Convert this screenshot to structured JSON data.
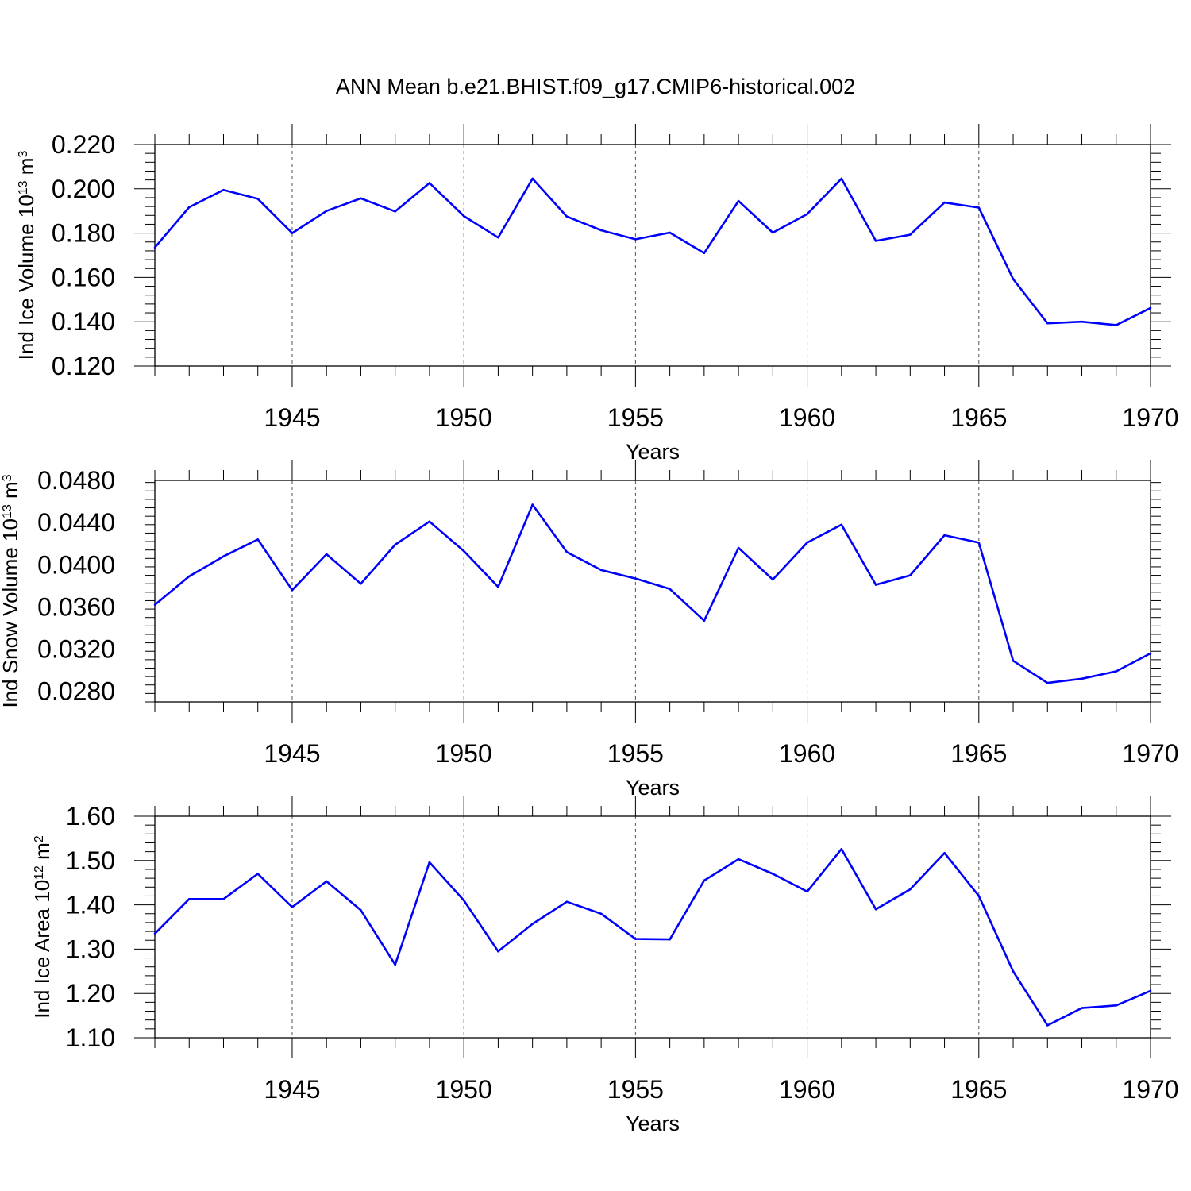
{
  "title": "ANN Mean b.e21.BHIST.f09_g17.CMIP6-historical.002",
  "line_color": "#0000ff",
  "chart_data": [
    {
      "type": "line",
      "ylabel_main": "Ind Ice Volume 10",
      "ylabel_exp": "13",
      "ylabel_unit": " m",
      "ylabel_unit_exp": "3",
      "xlabel": "Years",
      "xlim": [
        1941,
        1970
      ],
      "ylim": [
        0.12,
        0.22
      ],
      "yticks": [
        "0.120",
        "0.140",
        "0.160",
        "0.180",
        "0.200",
        "0.220"
      ],
      "xticks": [
        "1945",
        "1950",
        "1955",
        "1960",
        "1965",
        "1970"
      ],
      "x": [
        1941,
        1942,
        1943,
        1944,
        1945,
        1946,
        1947,
        1948,
        1949,
        1950,
        1951,
        1952,
        1953,
        1954,
        1955,
        1956,
        1957,
        1958,
        1959,
        1960,
        1961,
        1962,
        1963,
        1964,
        1965,
        1966,
        1967,
        1968,
        1969,
        1970
      ],
      "values": [
        0.1735,
        0.1917,
        0.1995,
        0.1955,
        0.18,
        0.19,
        0.1957,
        0.1898,
        0.2026,
        0.1877,
        0.178,
        0.2046,
        0.1875,
        0.1813,
        0.1772,
        0.1802,
        0.171,
        0.1945,
        0.1802,
        0.1886,
        0.2046,
        0.1765,
        0.1793,
        0.1938,
        0.1915,
        0.1593,
        0.1393,
        0.14,
        0.1385,
        0.1462
      ],
      "grid": "dashed vertical at labeled years"
    },
    {
      "type": "line",
      "ylabel_main": "Ind Snow Volume 10",
      "ylabel_exp": "13",
      "ylabel_unit": " m",
      "ylabel_unit_exp": "3",
      "xlabel": "Years",
      "xlim": [
        1941,
        1970
      ],
      "ylim": [
        0.027,
        0.048
      ],
      "yticks": [
        "0.0280",
        "0.0320",
        "0.0360",
        "0.0400",
        "0.0440",
        "0.0480"
      ],
      "ytick_values": [
        0.028,
        0.032,
        0.036,
        0.04,
        0.044,
        0.048
      ],
      "xticks": [
        "1945",
        "1950",
        "1955",
        "1960",
        "1965",
        "1970"
      ],
      "x": [
        1941,
        1942,
        1943,
        1944,
        1945,
        1946,
        1947,
        1948,
        1949,
        1950,
        1951,
        1952,
        1953,
        1954,
        1955,
        1956,
        1957,
        1958,
        1959,
        1960,
        1961,
        1962,
        1963,
        1964,
        1965,
        1966,
        1967,
        1968,
        1969,
        1970
      ],
      "values": [
        0.0362,
        0.0389,
        0.0408,
        0.0424,
        0.0376,
        0.041,
        0.0382,
        0.0419,
        0.0441,
        0.0413,
        0.0379,
        0.0457,
        0.0412,
        0.0395,
        0.0387,
        0.0377,
        0.0347,
        0.0416,
        0.0386,
        0.0421,
        0.0438,
        0.0381,
        0.039,
        0.0428,
        0.0421,
        0.0309,
        0.0288,
        0.0292,
        0.0299,
        0.0316
      ],
      "grid": "dashed vertical at labeled years"
    },
    {
      "type": "line",
      "ylabel_main": "Ind Ice Area 10",
      "ylabel_exp": "12",
      "ylabel_unit": " m",
      "ylabel_unit_exp": "2",
      "xlabel": "Years",
      "xlim": [
        1941,
        1970
      ],
      "ylim": [
        1.1,
        1.6
      ],
      "yticks": [
        "1.10",
        "1.20",
        "1.30",
        "1.40",
        "1.50",
        "1.60"
      ],
      "xticks": [
        "1945",
        "1950",
        "1955",
        "1960",
        "1965",
        "1970"
      ],
      "x": [
        1941,
        1942,
        1943,
        1944,
        1945,
        1946,
        1947,
        1948,
        1949,
        1950,
        1951,
        1952,
        1953,
        1954,
        1955,
        1956,
        1957,
        1958,
        1959,
        1960,
        1961,
        1962,
        1963,
        1964,
        1965,
        1966,
        1967,
        1968,
        1969,
        1970
      ],
      "values": [
        1.335,
        1.413,
        1.413,
        1.47,
        1.395,
        1.453,
        1.388,
        1.265,
        1.496,
        1.41,
        1.295,
        1.357,
        1.407,
        1.38,
        1.323,
        1.322,
        1.455,
        1.503,
        1.47,
        1.43,
        1.526,
        1.39,
        1.435,
        1.517,
        1.42,
        1.25,
        1.128,
        1.167,
        1.173,
        1.206
      ],
      "grid": "dashed vertical at labeled years"
    }
  ]
}
